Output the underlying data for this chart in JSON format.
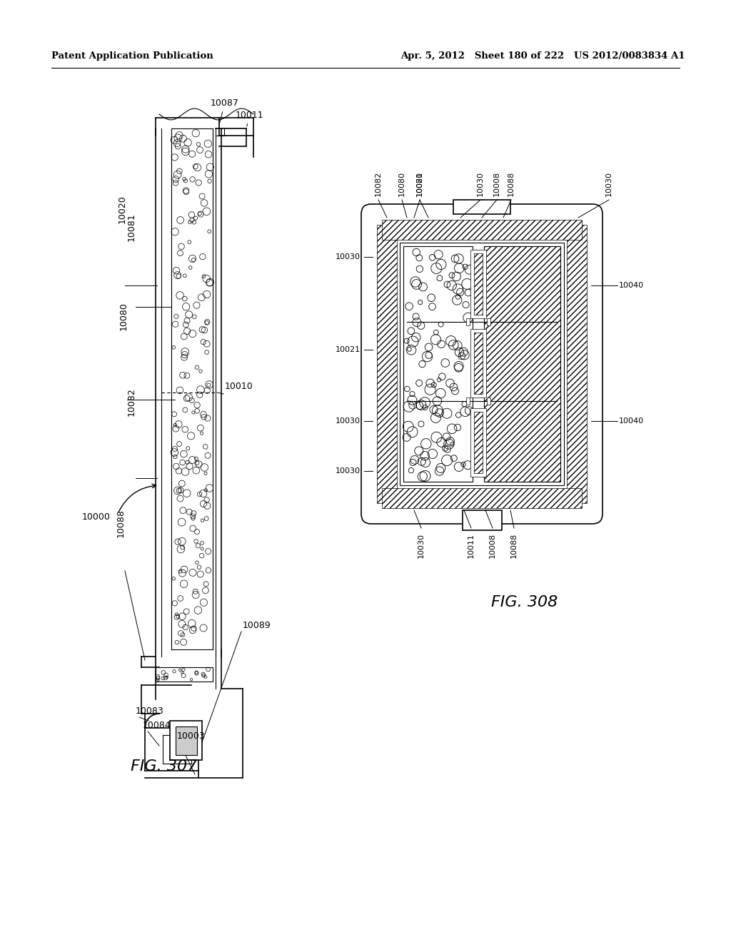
{
  "header_left": "Patent Application Publication",
  "header_right": "Apr. 5, 2012   Sheet 180 of 222   US 2012/0083834 A1",
  "fig307_label": "FIG. 307",
  "fig308_label": "FIG. 308",
  "bg_color": "#ffffff",
  "line_color": "#000000"
}
